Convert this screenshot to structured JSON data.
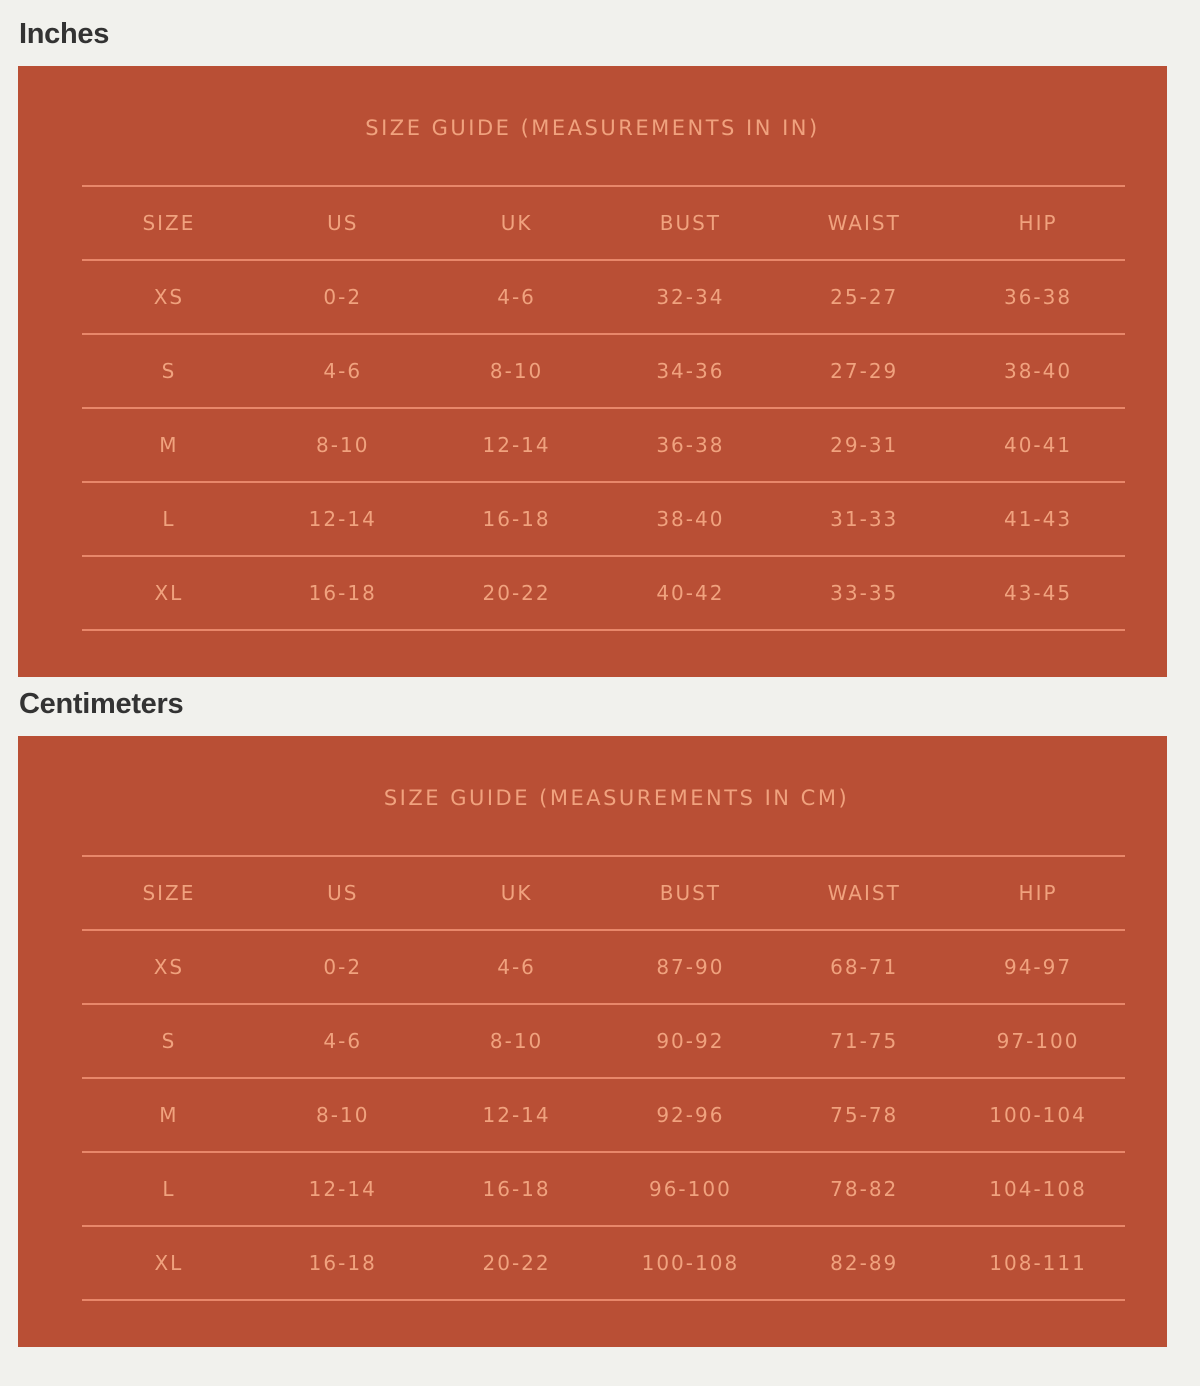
{
  "colors": {
    "background": "#f1f1ed",
    "panel": "#b94f35",
    "text": "#f0a27e",
    "rule": "#e8876a",
    "heading": "#333333"
  },
  "sections": [
    {
      "heading": "Inches",
      "title": "SIZE GUIDE (MEASUREMENTS IN IN)",
      "columns": [
        "SIZE",
        "US",
        "UK",
        "BUST",
        "WAIST",
        "HIP"
      ],
      "rows": [
        [
          "XS",
          "0-2",
          "4-6",
          "32-34",
          "25-27",
          "36-38"
        ],
        [
          "S",
          "4-6",
          "8-10",
          "34-36",
          "27-29",
          "38-40"
        ],
        [
          "M",
          "8-10",
          "12-14",
          "36-38",
          "29-31",
          "40-41"
        ],
        [
          "L",
          "12-14",
          "16-18",
          "38-40",
          "31-33",
          "41-43"
        ],
        [
          "XL",
          "16-18",
          "20-22",
          "40-42",
          "33-35",
          "43-45"
        ]
      ]
    },
    {
      "heading": "Centimeters",
      "title": "SIZE GUIDE (MEASUREMENTS IN CM)",
      "columns": [
        "SIZE",
        "US",
        "UK",
        "BUST",
        "WAIST",
        "HIP"
      ],
      "rows": [
        [
          "XS",
          "0-2",
          "4-6",
          "87-90",
          "68-71",
          "94-97"
        ],
        [
          "S",
          "4-6",
          "8-10",
          "90-92",
          "71-75",
          "97-100"
        ],
        [
          "M",
          "8-10",
          "12-14",
          "92-96",
          "75-78",
          "100-104"
        ],
        [
          "L",
          "12-14",
          "16-18",
          "96-100",
          "78-82",
          "104-108"
        ],
        [
          "XL",
          "16-18",
          "20-22",
          "100-108",
          "82-89",
          "108-111"
        ]
      ]
    }
  ]
}
